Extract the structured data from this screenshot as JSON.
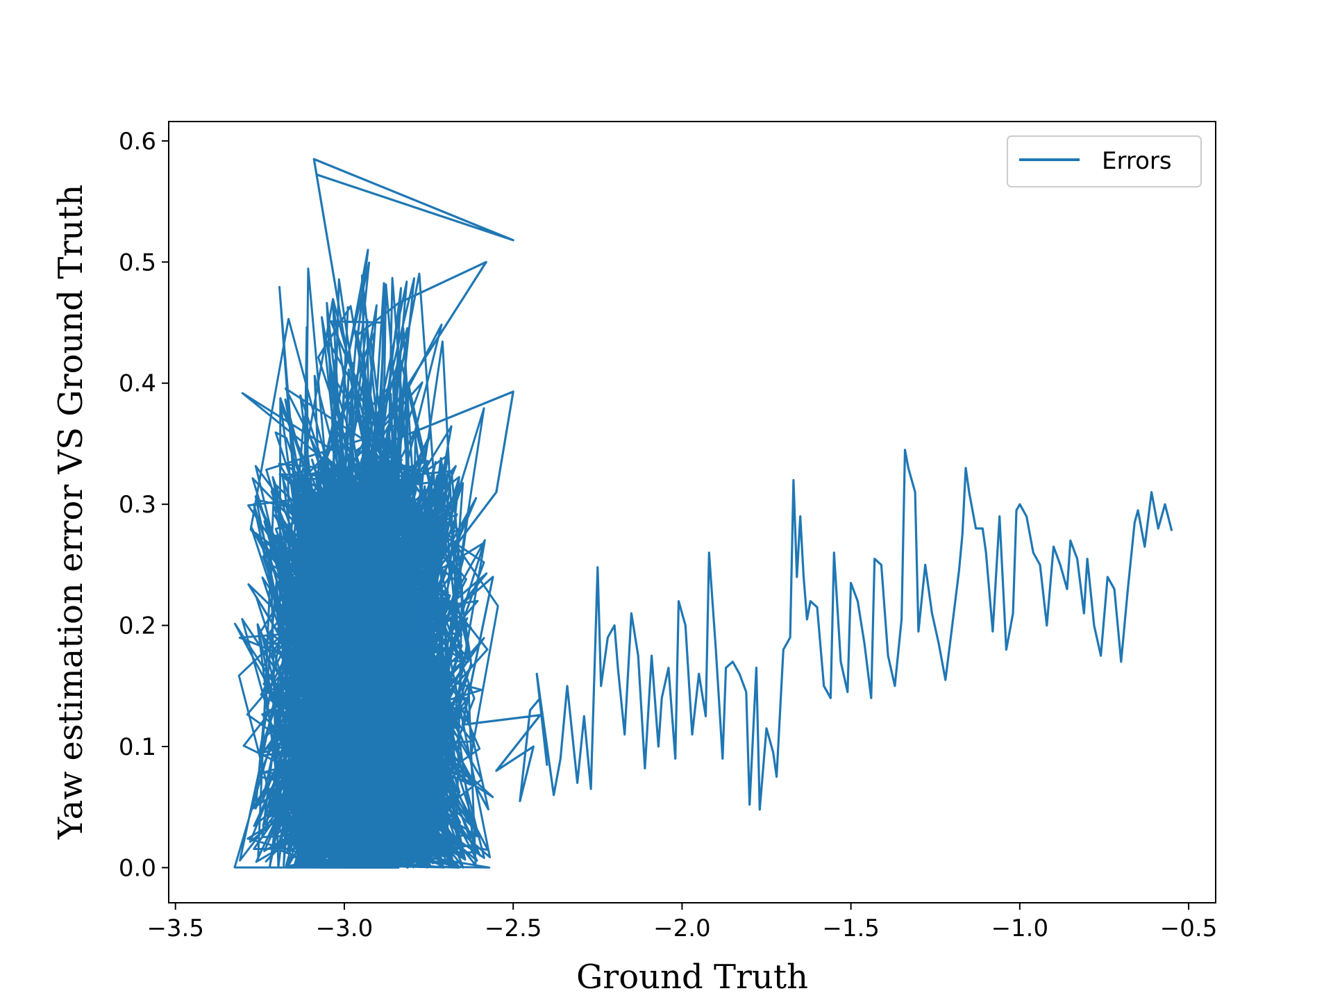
{
  "chart_data": {
    "type": "line",
    "xlabel": "Ground Truth",
    "ylabel": "Yaw estimation error VS Ground Truth",
    "xlim": [
      -3.52,
      -0.42
    ],
    "ylim": [
      -0.029,
      0.616
    ],
    "xticks": [
      -3.5,
      -3.0,
      -2.5,
      -2.0,
      -1.5,
      -1.0,
      -0.5
    ],
    "xtick_labels": [
      "−3.5",
      "−3.0",
      "−2.5",
      "−2.0",
      "−1.5",
      "−1.0",
      "−0.5"
    ],
    "yticks": [
      0.0,
      0.1,
      0.2,
      0.3,
      0.4,
      0.5,
      0.6
    ],
    "ytick_labels": [
      "0.0",
      "0.1",
      "0.2",
      "0.3",
      "0.4",
      "0.5",
      "0.6"
    ],
    "grid": false,
    "legend": {
      "position": "top-right",
      "entries": [
        "Errors"
      ]
    },
    "color": "#1f77b4",
    "dense_cluster": {
      "x_range": [
        -3.37,
        -2.5
      ],
      "y_range": [
        0.0,
        0.587
      ],
      "note_points": 2600
    },
    "series": [
      {
        "name": "Errors",
        "x": [
          -3.08,
          -2.5,
          -3.09,
          -2.99,
          -2.93,
          -2.96,
          -2.84,
          -2.58,
          -2.9,
          -2.88,
          -3.04,
          -2.88,
          -2.5,
          -2.55,
          -2.74,
          -2.61,
          -2.8,
          -2.56,
          -2.65,
          -2.42,
          -2.55,
          -2.44,
          -2.48,
          -2.45,
          -2.42,
          -2.4,
          -2.43,
          -2.38,
          -2.36,
          -2.34,
          -2.31,
          -2.29,
          -2.27,
          -2.25,
          -2.24,
          -2.22,
          -2.2,
          -2.19,
          -2.17,
          -2.15,
          -2.13,
          -2.11,
          -2.09,
          -2.07,
          -2.06,
          -2.04,
          -2.02,
          -2.01,
          -1.99,
          -1.97,
          -1.95,
          -1.93,
          -1.92,
          -1.9,
          -1.88,
          -1.87,
          -1.85,
          -1.83,
          -1.81,
          -1.8,
          -1.78,
          -1.77,
          -1.75,
          -1.73,
          -1.72,
          -1.7,
          -1.68,
          -1.67,
          -1.66,
          -1.65,
          -1.64,
          -1.63,
          -1.62,
          -1.6,
          -1.58,
          -1.56,
          -1.55,
          -1.53,
          -1.51,
          -1.5,
          -1.48,
          -1.46,
          -1.44,
          -1.43,
          -1.41,
          -1.39,
          -1.37,
          -1.35,
          -1.34,
          -1.33,
          -1.32,
          -1.31,
          -1.3,
          -1.28,
          -1.26,
          -1.24,
          -1.22,
          -1.2,
          -1.18,
          -1.17,
          -1.16,
          -1.15,
          -1.13,
          -1.11,
          -1.1,
          -1.08,
          -1.06,
          -1.04,
          -1.02,
          -1.01,
          -1.0,
          -0.98,
          -0.96,
          -0.94,
          -0.92,
          -0.9,
          -0.88,
          -0.86,
          -0.85,
          -0.83,
          -0.81,
          -0.8,
          -0.78,
          -0.76,
          -0.74,
          -0.72,
          -0.7,
          -0.68,
          -0.66,
          -0.65,
          -0.63,
          -0.61,
          -0.59,
          -0.57,
          -0.55
        ],
        "y": [
          0.572,
          0.518,
          0.585,
          0.42,
          0.51,
          0.44,
          0.466,
          0.5,
          0.36,
          0.45,
          0.451,
          0.35,
          0.393,
          0.31,
          0.24,
          0.305,
          0.182,
          0.24,
          0.118,
          0.126,
          0.08,
          0.1,
          0.055,
          0.13,
          0.14,
          0.085,
          0.16,
          0.06,
          0.09,
          0.15,
          0.07,
          0.125,
          0.065,
          0.248,
          0.15,
          0.19,
          0.2,
          0.165,
          0.11,
          0.21,
          0.175,
          0.082,
          0.175,
          0.1,
          0.14,
          0.165,
          0.09,
          0.22,
          0.2,
          0.11,
          0.16,
          0.125,
          0.26,
          0.18,
          0.09,
          0.165,
          0.17,
          0.16,
          0.145,
          0.052,
          0.165,
          0.048,
          0.115,
          0.095,
          0.075,
          0.18,
          0.19,
          0.32,
          0.24,
          0.29,
          0.24,
          0.205,
          0.22,
          0.215,
          0.15,
          0.14,
          0.26,
          0.17,
          0.145,
          0.235,
          0.22,
          0.185,
          0.14,
          0.255,
          0.25,
          0.175,
          0.15,
          0.205,
          0.345,
          0.33,
          0.32,
          0.31,
          0.195,
          0.25,
          0.21,
          0.185,
          0.155,
          0.2,
          0.245,
          0.275,
          0.33,
          0.31,
          0.28,
          0.28,
          0.26,
          0.195,
          0.29,
          0.18,
          0.21,
          0.295,
          0.3,
          0.29,
          0.26,
          0.25,
          0.2,
          0.265,
          0.25,
          0.23,
          0.27,
          0.255,
          0.21,
          0.255,
          0.2,
          0.175,
          0.24,
          0.23,
          0.17,
          0.23,
          0.285,
          0.295,
          0.265,
          0.31,
          0.28,
          0.3,
          0.278
        ]
      }
    ]
  }
}
